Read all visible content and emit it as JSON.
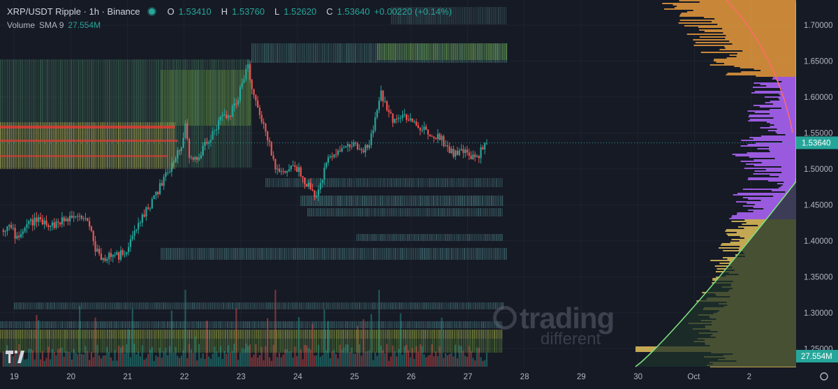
{
  "legend": {
    "symbol": "XRP/USDT Ripple · 1h · Binance",
    "o_label": "O",
    "o_value": "1.53410",
    "h_label": "H",
    "h_value": "1.53760",
    "l_label": "L",
    "l_value": "1.52620",
    "c_label": "C",
    "c_value": "1.53640",
    "change": "+0.00220 (+0.14%)",
    "volume_label": "Volume",
    "volume_ma": "SMA 9",
    "volume_value": "27.554M"
  },
  "price_axis": {
    "ticks": [
      "1.70000",
      "1.65000",
      "1.60000",
      "1.55000",
      "1.50000",
      "1.45000",
      "1.40000",
      "1.35000",
      "1.30000",
      "1.25000"
    ],
    "last_price_label": "1.53640",
    "volume_label": "27.554M"
  },
  "time_axis": {
    "ticks": [
      "19",
      "20",
      "21",
      "22",
      "23",
      "24",
      "25",
      "26",
      "27",
      "28",
      "29",
      "30",
      "Oct",
      "2"
    ]
  },
  "watermark": {
    "main": "trading",
    "sub": "different"
  },
  "colors": {
    "background": "#161a25",
    "up": "#26a69a",
    "down": "#ef5350",
    "heat_green": "#7cb342",
    "heat_yellow": "#c9b84a",
    "heat_red": "#e53935",
    "profile_orange": "#e89b3c",
    "profile_purple": "#b266ff",
    "profile_yellow": "#e3c15a",
    "cum_line": "#7ee07e"
  },
  "chart_data": {
    "type": "candlestick",
    "interval": "1h",
    "symbol": "XRP/USDT",
    "x_range": [
      "19",
      "2"
    ],
    "ylim": [
      1.225,
      1.735
    ],
    "last_price": 1.5364,
    "price_path": [
      [
        0,
        1.415
      ],
      [
        4,
        1.42
      ],
      [
        8,
        1.405
      ],
      [
        14,
        1.425
      ],
      [
        20,
        1.43
      ],
      [
        26,
        1.422
      ],
      [
        32,
        1.428
      ],
      [
        38,
        1.44
      ],
      [
        44,
        1.43
      ],
      [
        48,
        1.39
      ],
      [
        52,
        1.375
      ],
      [
        56,
        1.38
      ],
      [
        60,
        1.378
      ],
      [
        64,
        1.39
      ],
      [
        68,
        1.41
      ],
      [
        72,
        1.435
      ],
      [
        76,
        1.45
      ],
      [
        80,
        1.47
      ],
      [
        84,
        1.49
      ],
      [
        88,
        1.51
      ],
      [
        92,
        1.535
      ],
      [
        94,
        1.56
      ],
      [
        96,
        1.52
      ],
      [
        100,
        1.51
      ],
      [
        104,
        1.535
      ],
      [
        108,
        1.55
      ],
      [
        112,
        1.57
      ],
      [
        116,
        1.575
      ],
      [
        120,
        1.59
      ],
      [
        124,
        1.63
      ],
      [
        126,
        1.64
      ],
      [
        128,
        1.615
      ],
      [
        132,
        1.57
      ],
      [
        136,
        1.545
      ],
      [
        140,
        1.5
      ],
      [
        144,
        1.495
      ],
      [
        148,
        1.505
      ],
      [
        152,
        1.5
      ],
      [
        156,
        1.48
      ],
      [
        160,
        1.46
      ],
      [
        164,
        1.49
      ],
      [
        168,
        1.52
      ],
      [
        172,
        1.525
      ],
      [
        176,
        1.53
      ],
      [
        180,
        1.535
      ],
      [
        184,
        1.52
      ],
      [
        188,
        1.535
      ],
      [
        192,
        1.58
      ],
      [
        194,
        1.605
      ],
      [
        196,
        1.59
      ],
      [
        200,
        1.57
      ],
      [
        204,
        1.575
      ],
      [
        208,
        1.57
      ],
      [
        212,
        1.56
      ],
      [
        216,
        1.555
      ],
      [
        220,
        1.55
      ],
      [
        224,
        1.545
      ],
      [
        228,
        1.53
      ],
      [
        232,
        1.52
      ],
      [
        236,
        1.525
      ],
      [
        240,
        1.515
      ],
      [
        244,
        1.52
      ],
      [
        246,
        1.532
      ],
      [
        248,
        1.5364
      ]
    ],
    "volume_profile_peak": 1.25,
    "note_heatmap_levels": [
      1.7,
      1.65,
      1.52,
      1.445,
      1.415,
      1.37,
      1.28,
      1.245
    ]
  }
}
